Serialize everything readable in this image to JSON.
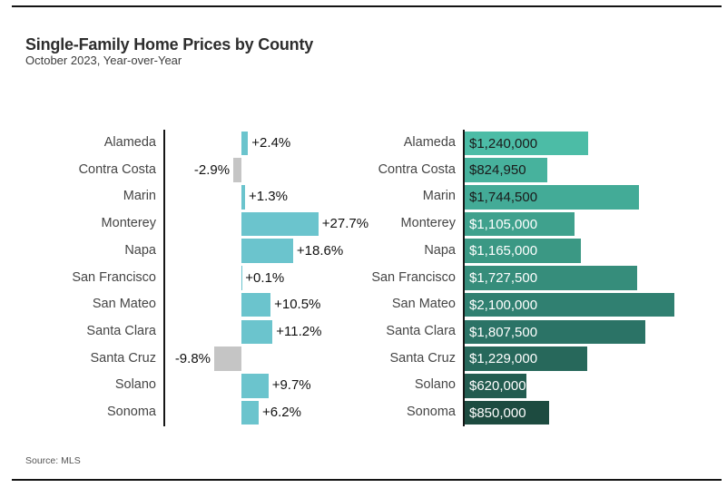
{
  "header": {
    "title": "Single-Family Home Prices by County",
    "subtitle": "October 2023, Year-over-Year"
  },
  "footer": {
    "source": "Source: MLS"
  },
  "chart_data": [
    {
      "type": "bar",
      "orientation": "horizontal",
      "unit": "percent",
      "categories": [
        "Alameda",
        "Contra Costa",
        "Marin",
        "Monterey",
        "Napa",
        "San Francisco",
        "San Mateo",
        "Santa Clara",
        "Santa Cruz",
        "Solano",
        "Sonoma"
      ],
      "values": [
        2.4,
        -2.9,
        1.3,
        27.7,
        18.6,
        0.1,
        10.5,
        11.2,
        -9.8,
        9.7,
        6.2
      ],
      "labels": [
        "+2.4%",
        "-2.9%",
        "+1.3%",
        "+27.7%",
        "+18.6%",
        "+0.1%",
        "+10.5%",
        "+11.2%",
        "-9.8%",
        "+9.7%",
        "+6.2%"
      ],
      "positive_color": "#6BC4CD",
      "negative_color": "#C5C5C5",
      "axis_color": "#161616",
      "grid": false,
      "legend": false
    },
    {
      "type": "bar",
      "orientation": "horizontal",
      "unit": "USD",
      "categories": [
        "Alameda",
        "Contra Costa",
        "Marin",
        "Monterey",
        "Napa",
        "San Francisco",
        "San Mateo",
        "Santa Clara",
        "Santa Cruz",
        "Solano",
        "Sonoma"
      ],
      "values": [
        1240000,
        824950,
        1744500,
        1105000,
        1165000,
        1727500,
        2100000,
        1807500,
        1229000,
        620000,
        850000
      ],
      "labels": [
        "$1,240,000",
        "$824,950",
        "$1,744,500",
        "$1,105,000",
        "$1,165,000",
        "$1,727,500",
        "$2,100,000",
        "$1,807,500",
        "$1,229,000",
        "$620,000",
        "$850,000"
      ],
      "bar_colors": [
        "#4CBCA6",
        "#47B29D",
        "#43AB97",
        "#3FA18D",
        "#3B9884",
        "#368D7B",
        "#308071",
        "#2B7366",
        "#27685B",
        "#235C50",
        "#1D4B40"
      ],
      "label_text_colors": [
        "#1a1a1a",
        "#1a1a1a",
        "#1a1a1a",
        "#ffffff",
        "#ffffff",
        "#ffffff",
        "#ffffff",
        "#ffffff",
        "#ffffff",
        "#ffffff",
        "#ffffff"
      ],
      "axis_color": "#161616",
      "grid": false,
      "legend": false
    }
  ]
}
